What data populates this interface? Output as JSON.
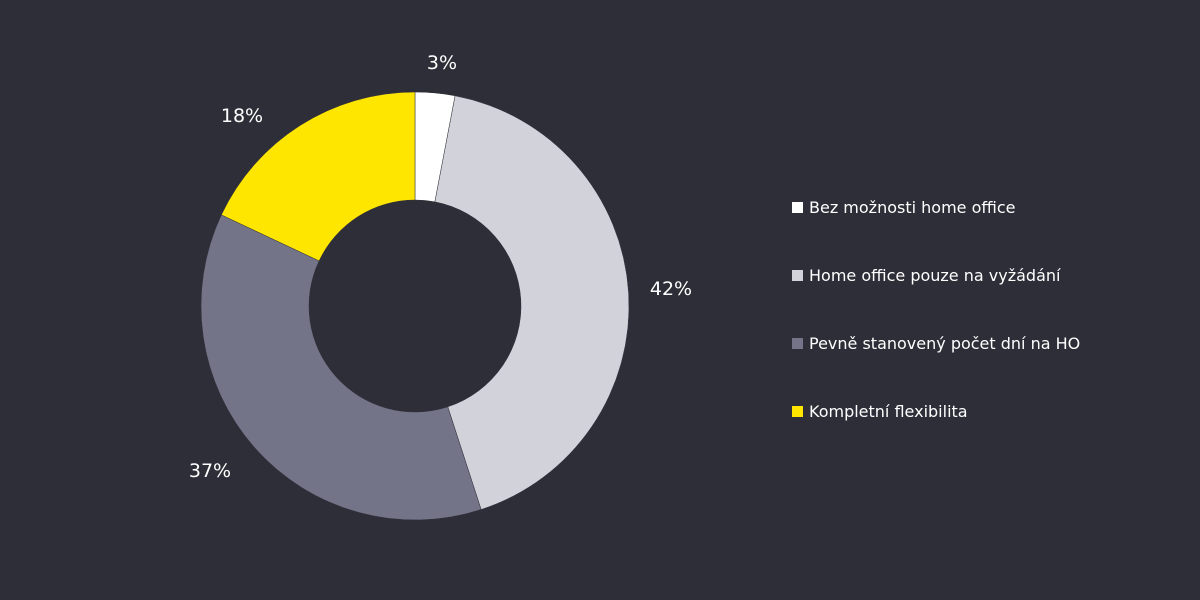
{
  "chart_data": {
    "type": "pie",
    "donut": true,
    "start": "top, clockwise",
    "categories": [
      "Bez možnosti home office",
      "Home office pouze na vyžádání",
      "Pevně stanovený počet dní na HO",
      "Kompletní flexibilita"
    ],
    "values": [
      3,
      42,
      37,
      18
    ],
    "data_labels": [
      "3%",
      "42%",
      "37%",
      "18%"
    ],
    "colors": [
      "#ffffff",
      "#d2d2da",
      "#747489",
      "#ffe600"
    ],
    "legend_position": "right",
    "background": "#2e2e38"
  }
}
